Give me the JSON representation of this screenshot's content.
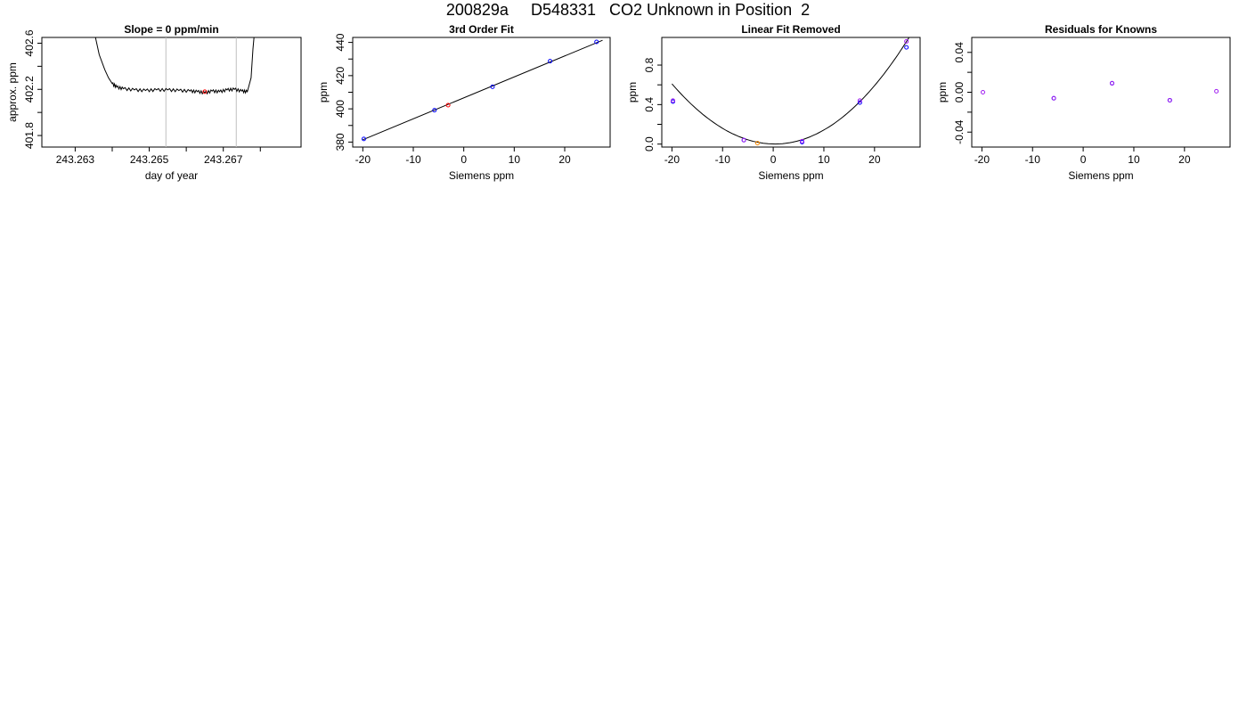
{
  "page": {
    "title": "200829a     D548331   CO2 Unknown in Position  2"
  },
  "colors": {
    "axis": "#000000",
    "line": "#000000",
    "vline": "#bfbfbf",
    "known": "#0000ff",
    "unknown": "#ff0000",
    "known_alt": "#a020f0",
    "unknown_alt": "#ff8c00"
  },
  "chart_data": [
    {
      "type": "line",
      "title": "Slope =  0  ppm/min",
      "xlabel": "day of year",
      "ylabel": "approx. ppm",
      "xlim": [
        243.2621,
        243.2691
      ],
      "ylim": [
        401.7,
        402.65
      ],
      "xticks": [
        243.263,
        243.264,
        243.265,
        243.266,
        243.267,
        243.268
      ],
      "xtick_labels": [
        "243.263",
        "",
        "243.265",
        "",
        "243.267",
        ""
      ],
      "yticks": [
        401.8,
        402.0,
        402.2,
        402.4,
        402.6
      ],
      "ytick_labels": [
        "401.8",
        "",
        "402.2",
        "",
        "402.6"
      ],
      "grid": false,
      "vlines": [
        243.26545,
        243.26735
      ],
      "series": [
        {
          "x": [
            243.2635,
            243.26365,
            243.2638,
            243.2639,
            243.264,
            243.26412,
            243.2643,
            243.2646,
            243.2649,
            243.2652,
            243.2655,
            243.2658,
            243.2661,
            243.2663,
            243.2665,
            243.2667,
            243.2669,
            243.2671,
            243.2673,
            243.2675,
            243.26765,
            243.26775,
            243.2678,
            243.26785
          ],
          "y": [
            402.72,
            402.5,
            402.37,
            402.3,
            402.25,
            402.22,
            402.205,
            402.195,
            402.19,
            402.195,
            402.195,
            402.19,
            402.185,
            402.18,
            402.17,
            402.185,
            402.18,
            402.195,
            402.2,
            402.185,
            402.18,
            402.3,
            402.55,
            402.72
          ]
        }
      ],
      "points": [
        {
          "x": 243.2665,
          "y": 402.18,
          "role": "unknown"
        }
      ]
    },
    {
      "type": "scatter",
      "title": "3rd Order Fit",
      "xlabel": "Siemens ppm",
      "ylabel": "ppm",
      "xlim": [
        -22,
        29
      ],
      "ylim": [
        377,
        443
      ],
      "xticks": [
        -20,
        -10,
        0,
        10,
        20
      ],
      "xtick_labels": [
        "-20",
        "-10",
        "0",
        "10",
        "20"
      ],
      "yticks": [
        380,
        390,
        400,
        410,
        420,
        430,
        440
      ],
      "ytick_labels": [
        "380",
        "",
        "400",
        "",
        "420",
        "",
        "440"
      ],
      "grid": false,
      "fit_line": {
        "x": [
          -20,
          27.5
        ],
        "y": [
          381.4,
          441.3
        ]
      },
      "series": [
        {
          "name": "",
          "role": "known",
          "x": [
            -19.8,
            -5.8,
            5.7,
            17.1,
            26.3
          ],
          "y": [
            381.9,
            399.2,
            413.3,
            428.7,
            440.3
          ]
        },
        {
          "name": "",
          "role": "unknown",
          "x": [
            -3.1
          ],
          "y": [
            402.2
          ]
        }
      ]
    },
    {
      "type": "scatter",
      "title": "Linear Fit Removed",
      "xlabel": "Siemens ppm",
      "ylabel": "ppm",
      "xlim": [
        -22,
        29
      ],
      "ylim": [
        -0.03,
        1.08
      ],
      "xticks": [
        -20,
        -10,
        0,
        10,
        20
      ],
      "xtick_labels": [
        "-20",
        "-10",
        "0",
        "10",
        "20"
      ],
      "yticks": [
        0.0,
        0.2,
        0.4,
        0.6,
        0.8
      ],
      "ytick_labels": [
        "0.0",
        "",
        "0.4",
        "",
        "0.8"
      ],
      "grid": false,
      "fit_curve": {
        "coeffs": [
          0.0012,
          -0.001,
          0.0015,
          1.4e-06
        ]
      },
      "series": [
        {
          "name": "",
          "role": "known",
          "x": [
            -19.8,
            -5.8,
            5.7,
            17.1,
            26.3
          ],
          "y": [
            0.43,
            0.04,
            0.02,
            0.42,
            0.98
          ]
        },
        {
          "name": "",
          "role": "known_alt",
          "x": [
            -19.8,
            -5.8,
            5.7,
            17.1,
            26.3
          ],
          "y": [
            0.44,
            0.04,
            0.03,
            0.44,
            1.04
          ]
        },
        {
          "name": "",
          "role": "unknown_alt",
          "x": [
            -3.1
          ],
          "y": [
            0.01
          ]
        }
      ]
    },
    {
      "type": "scatter",
      "title": "Residuals for Knowns",
      "xlabel": "Siemens ppm",
      "ylabel": "ppm",
      "xlim": [
        -22,
        29
      ],
      "ylim": [
        -0.055,
        0.055
      ],
      "xticks": [
        -20,
        -10,
        0,
        10,
        20
      ],
      "xtick_labels": [
        "-20",
        "-10",
        "0",
        "10",
        "20"
      ],
      "yticks": [
        -0.04,
        -0.02,
        0.0,
        0.02,
        0.04
      ],
      "ytick_labels": [
        "-0.04",
        "",
        "0.00",
        "",
        "0.04"
      ],
      "grid": false,
      "series": [
        {
          "name": "",
          "role": "known",
          "x": [
            -5.8,
            5.7,
            17.1
          ],
          "y": [
            -0.006,
            0.009,
            -0.008
          ]
        },
        {
          "name": "",
          "role": "known_alt",
          "x": [
            -19.8,
            -5.8,
            5.7,
            17.1,
            26.3
          ],
          "y": [
            0.0,
            -0.006,
            0.009,
            -0.008,
            0.001
          ]
        }
      ]
    }
  ]
}
